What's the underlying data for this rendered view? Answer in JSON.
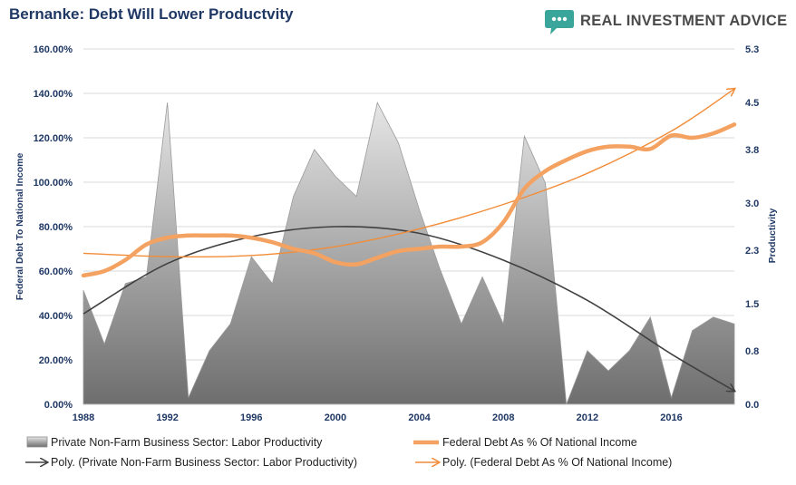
{
  "header": {
    "title": "Bernanke: Debt Will Lower Productvity",
    "brand": "REAL INVESTMENT ADVICE",
    "brand_icon": "speech-bubble-icon",
    "brand_color": "#3aa59a"
  },
  "chart_data": {
    "type": "area",
    "title": "Bernanke: Debt Will Lower Productvity",
    "ylabel_left": "Federal Debt To National Income",
    "ylabel_right": "Productivity",
    "x_ticks": [
      "1988",
      "1992",
      "1996",
      "2000",
      "2004",
      "2008",
      "2012",
      "2016"
    ],
    "y_left_ticks": [
      "0.00%",
      "20.00%",
      "40.00%",
      "60.00%",
      "80.00%",
      "100.00%",
      "120.00%",
      "140.00%",
      "160.00%"
    ],
    "y_right_ticks": [
      "0.0",
      "0.8",
      "1.5",
      "2.3",
      "3.0",
      "3.8",
      "4.5",
      "5.3"
    ],
    "y_left_range": [
      0,
      160
    ],
    "y_right_range": [
      0,
      5.3
    ],
    "x_range": [
      1988,
      2019
    ],
    "grid": true,
    "legend_position": "bottom",
    "colors": {
      "productivity_fill": "#8c8c8c",
      "debt_line": "#f4a261",
      "debt_trend": "#f28c38",
      "prod_trend": "#404040"
    },
    "series": [
      {
        "name": "Private Non-Farm Business Sector: Labor Productivity",
        "kind": "area",
        "axis": "right",
        "x": [
          1988,
          1989,
          1990,
          1991,
          1992,
          1993,
          1994,
          1995,
          1996,
          1997,
          1998,
          1999,
          2000,
          2001,
          2002,
          2003,
          2004,
          2005,
          2006,
          2007,
          2008,
          2009,
          2010,
          2011,
          2012,
          2013,
          2014,
          2015,
          2016,
          2017,
          2018,
          2019
        ],
        "values": [
          1.7,
          0.9,
          1.8,
          1.9,
          4.5,
          0.1,
          0.8,
          1.2,
          2.2,
          1.8,
          3.1,
          3.8,
          3.4,
          3.1,
          4.5,
          3.9,
          2.9,
          2.0,
          1.2,
          1.9,
          1.2,
          4.0,
          3.3,
          0.0,
          0.8,
          0.5,
          0.8,
          1.3,
          0.1,
          1.1,
          1.3,
          1.2
        ]
      },
      {
        "name": "Federal Debt As % Of National Income",
        "kind": "line",
        "axis": "left",
        "x": [
          1988,
          1989,
          1990,
          1991,
          1992,
          1993,
          1994,
          1995,
          1996,
          1997,
          1998,
          1999,
          2000,
          2001,
          2002,
          2003,
          2004,
          2005,
          2006,
          2007,
          2008,
          2009,
          2010,
          2011,
          2012,
          2013,
          2014,
          2015,
          2016,
          2017,
          2018,
          2019
        ],
        "values": [
          58,
          60,
          65,
          72,
          75,
          76,
          76,
          76,
          75,
          73,
          70,
          68,
          64,
          63,
          66,
          69,
          70,
          71,
          71,
          73,
          82,
          97,
          105,
          110,
          114,
          116,
          116,
          115,
          121,
          120,
          122,
          126
        ]
      },
      {
        "name": "Poly. (Private Non-Farm Business Sector: Labor Productivity)",
        "kind": "trend",
        "axis": "right",
        "x": [
          1988,
          1992,
          1996,
          2000,
          2004,
          2008,
          2012,
          2016,
          2019
        ],
        "values": [
          1.35,
          2.1,
          2.5,
          2.65,
          2.55,
          2.15,
          1.55,
          0.75,
          0.2
        ]
      },
      {
        "name": "Poly. (Federal Debt As % Of National Income)",
        "kind": "trend",
        "axis": "left",
        "x": [
          1988,
          1992,
          1996,
          2000,
          2004,
          2008,
          2012,
          2016,
          2019
        ],
        "values": [
          68,
          66.5,
          67,
          71,
          79,
          90,
          104,
          123,
          142
        ]
      }
    ]
  }
}
